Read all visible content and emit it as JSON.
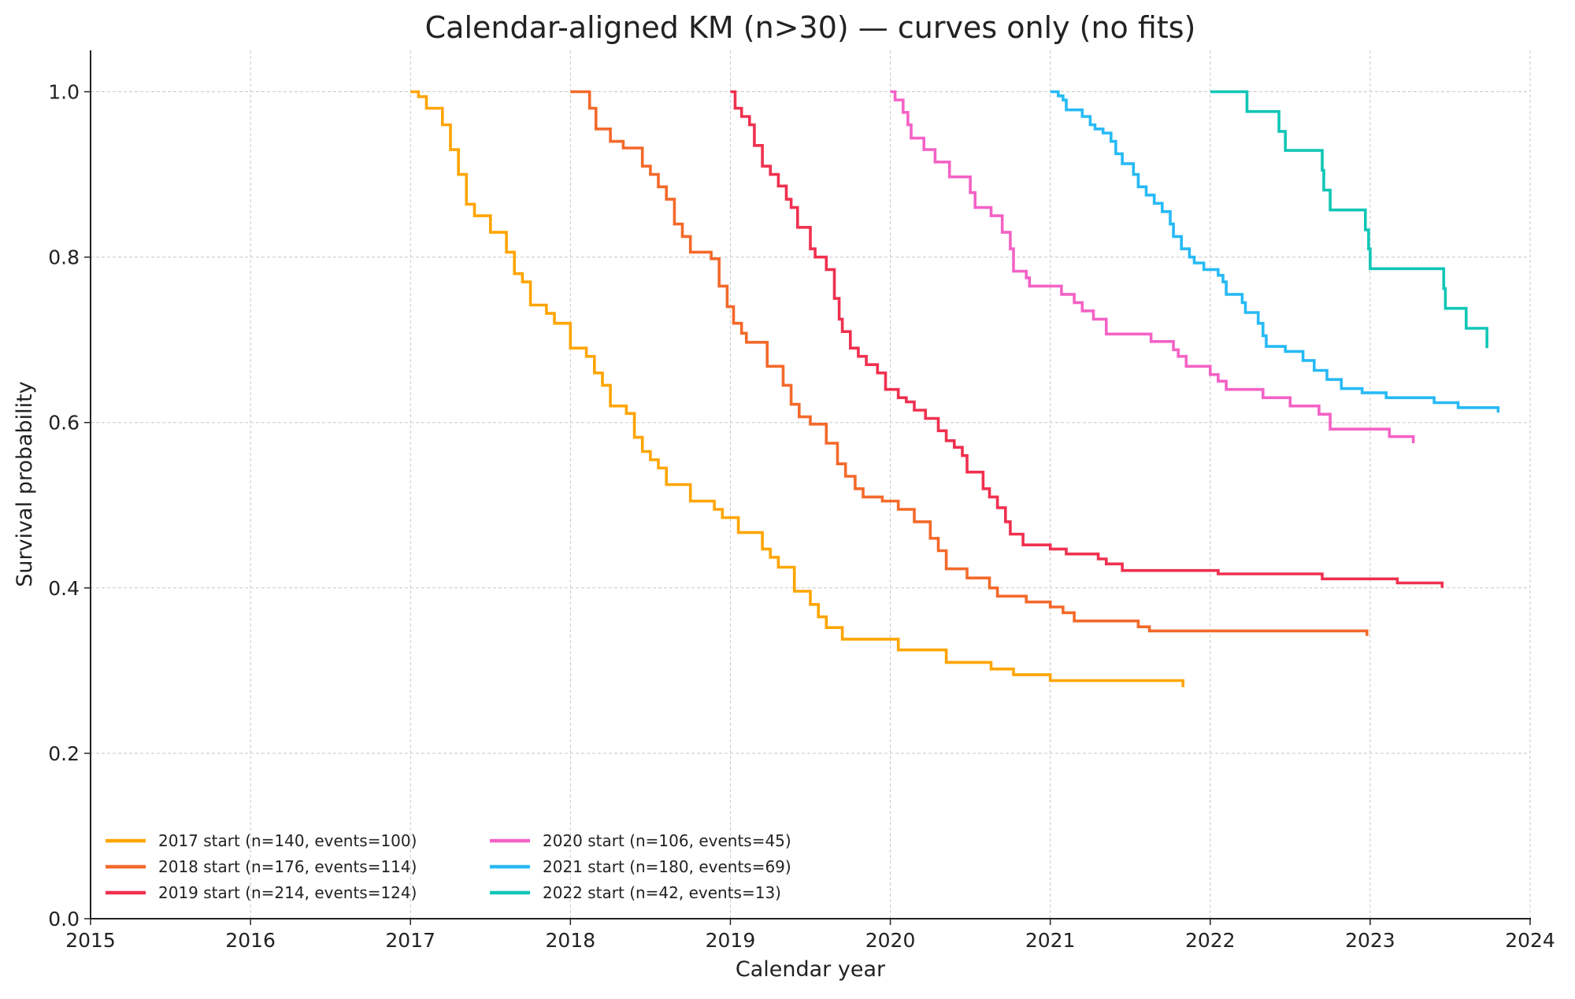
{
  "chart_data": {
    "type": "line",
    "step": true,
    "title": "Calendar-aligned KM (n>30) — curves only (no fits)",
    "xlabel": "Calendar year",
    "ylabel": "Survival probability",
    "xlim": [
      2015,
      2024
    ],
    "ylim": [
      0,
      1.05
    ],
    "xticks": [
      "2015",
      "2016",
      "2017",
      "2018",
      "2019",
      "2020",
      "2021",
      "2022",
      "2023",
      "2024"
    ],
    "yticks": [
      "0.0",
      "0.2",
      "0.4",
      "0.6",
      "0.8",
      "1.0"
    ],
    "grid": true,
    "legend_placement": "lower-left",
    "series": [
      {
        "name": "2017 start (n=140, events=100)",
        "color": "#FFA500",
        "points": [
          [
            2017.0,
            1.0
          ],
          [
            2017.05,
            0.994
          ],
          [
            2017.1,
            0.98
          ],
          [
            2017.2,
            0.96
          ],
          [
            2017.25,
            0.93
          ],
          [
            2017.3,
            0.9
          ],
          [
            2017.35,
            0.864
          ],
          [
            2017.4,
            0.85
          ],
          [
            2017.5,
            0.83
          ],
          [
            2017.6,
            0.806
          ],
          [
            2017.65,
            0.78
          ],
          [
            2017.7,
            0.77
          ],
          [
            2017.75,
            0.742
          ],
          [
            2017.85,
            0.732
          ],
          [
            2017.9,
            0.72
          ],
          [
            2018.0,
            0.69
          ],
          [
            2018.1,
            0.68
          ],
          [
            2018.15,
            0.66
          ],
          [
            2018.2,
            0.645
          ],
          [
            2018.25,
            0.62
          ],
          [
            2018.35,
            0.611
          ],
          [
            2018.4,
            0.582
          ],
          [
            2018.45,
            0.565
          ],
          [
            2018.5,
            0.555
          ],
          [
            2018.55,
            0.545
          ],
          [
            2018.6,
            0.525
          ],
          [
            2018.75,
            0.505
          ],
          [
            2018.9,
            0.495
          ],
          [
            2018.95,
            0.485
          ],
          [
            2019.05,
            0.467
          ],
          [
            2019.2,
            0.447
          ],
          [
            2019.25,
            0.437
          ],
          [
            2019.3,
            0.425
          ],
          [
            2019.4,
            0.396
          ],
          [
            2019.5,
            0.38
          ],
          [
            2019.55,
            0.365
          ],
          [
            2019.6,
            0.352
          ],
          [
            2019.7,
            0.338
          ],
          [
            2020.05,
            0.325
          ],
          [
            2020.35,
            0.31
          ],
          [
            2020.63,
            0.302
          ],
          [
            2020.77,
            0.295
          ],
          [
            2021.0,
            0.288
          ],
          [
            2021.83,
            0.288
          ],
          [
            2021.83,
            0.28
          ]
        ]
      },
      {
        "name": "2018 start (n=176, events=114)",
        "color": "#F4692A",
        "points": [
          [
            2018.0,
            1.0
          ],
          [
            2018.12,
            0.98
          ],
          [
            2018.16,
            0.955
          ],
          [
            2018.25,
            0.94
          ],
          [
            2018.33,
            0.932
          ],
          [
            2018.45,
            0.91
          ],
          [
            2018.5,
            0.9
          ],
          [
            2018.55,
            0.885
          ],
          [
            2018.6,
            0.87
          ],
          [
            2018.65,
            0.84
          ],
          [
            2018.7,
            0.825
          ],
          [
            2018.75,
            0.806
          ],
          [
            2018.88,
            0.798
          ],
          [
            2018.93,
            0.765
          ],
          [
            2018.98,
            0.74
          ],
          [
            2019.02,
            0.72
          ],
          [
            2019.07,
            0.708
          ],
          [
            2019.1,
            0.697
          ],
          [
            2019.23,
            0.668
          ],
          [
            2019.33,
            0.645
          ],
          [
            2019.38,
            0.622
          ],
          [
            2019.43,
            0.607
          ],
          [
            2019.5,
            0.598
          ],
          [
            2019.6,
            0.575
          ],
          [
            2019.67,
            0.55
          ],
          [
            2019.72,
            0.535
          ],
          [
            2019.78,
            0.52
          ],
          [
            2019.83,
            0.51
          ],
          [
            2019.95,
            0.505
          ],
          [
            2020.05,
            0.495
          ],
          [
            2020.15,
            0.48
          ],
          [
            2020.25,
            0.46
          ],
          [
            2020.3,
            0.445
          ],
          [
            2020.35,
            0.423
          ],
          [
            2020.48,
            0.412
          ],
          [
            2020.62,
            0.4
          ],
          [
            2020.67,
            0.39
          ],
          [
            2020.85,
            0.383
          ],
          [
            2021.0,
            0.377
          ],
          [
            2021.08,
            0.37
          ],
          [
            2021.15,
            0.36
          ],
          [
            2021.55,
            0.353
          ],
          [
            2021.62,
            0.348
          ],
          [
            2022.98,
            0.348
          ],
          [
            2022.98,
            0.342
          ]
        ]
      },
      {
        "name": "2019 start (n=214, events=124)",
        "color": "#F0304F",
        "points": [
          [
            2019.0,
            1.0
          ],
          [
            2019.03,
            0.98
          ],
          [
            2019.07,
            0.97
          ],
          [
            2019.12,
            0.96
          ],
          [
            2019.15,
            0.935
          ],
          [
            2019.2,
            0.91
          ],
          [
            2019.25,
            0.9
          ],
          [
            2019.3,
            0.886
          ],
          [
            2019.35,
            0.87
          ],
          [
            2019.38,
            0.86
          ],
          [
            2019.42,
            0.836
          ],
          [
            2019.5,
            0.81
          ],
          [
            2019.53,
            0.8
          ],
          [
            2019.6,
            0.785
          ],
          [
            2019.65,
            0.75
          ],
          [
            2019.68,
            0.725
          ],
          [
            2019.7,
            0.71
          ],
          [
            2019.75,
            0.69
          ],
          [
            2019.8,
            0.68
          ],
          [
            2019.85,
            0.67
          ],
          [
            2019.92,
            0.66
          ],
          [
            2019.97,
            0.64
          ],
          [
            2020.05,
            0.63
          ],
          [
            2020.1,
            0.625
          ],
          [
            2020.15,
            0.615
          ],
          [
            2020.22,
            0.605
          ],
          [
            2020.3,
            0.59
          ],
          [
            2020.35,
            0.578
          ],
          [
            2020.4,
            0.57
          ],
          [
            2020.45,
            0.56
          ],
          [
            2020.48,
            0.54
          ],
          [
            2020.58,
            0.52
          ],
          [
            2020.62,
            0.51
          ],
          [
            2020.67,
            0.497
          ],
          [
            2020.72,
            0.48
          ],
          [
            2020.75,
            0.465
          ],
          [
            2020.83,
            0.452
          ],
          [
            2021.0,
            0.447
          ],
          [
            2021.1,
            0.441
          ],
          [
            2021.3,
            0.435
          ],
          [
            2021.35,
            0.429
          ],
          [
            2021.45,
            0.421
          ],
          [
            2022.05,
            0.417
          ],
          [
            2022.7,
            0.411
          ],
          [
            2023.17,
            0.406
          ],
          [
            2023.45,
            0.406
          ],
          [
            2023.45,
            0.4
          ]
        ]
      },
      {
        "name": "2020 start (n=106, events=45)",
        "color": "#F462C6",
        "points": [
          [
            2020.0,
            1.0
          ],
          [
            2020.03,
            0.99
          ],
          [
            2020.08,
            0.975
          ],
          [
            2020.11,
            0.96
          ],
          [
            2020.13,
            0.944
          ],
          [
            2020.21,
            0.93
          ],
          [
            2020.28,
            0.915
          ],
          [
            2020.37,
            0.897
          ],
          [
            2020.5,
            0.878
          ],
          [
            2020.53,
            0.86
          ],
          [
            2020.63,
            0.85
          ],
          [
            2020.7,
            0.83
          ],
          [
            2020.75,
            0.81
          ],
          [
            2020.77,
            0.783
          ],
          [
            2020.85,
            0.775
          ],
          [
            2020.87,
            0.765
          ],
          [
            2021.07,
            0.755
          ],
          [
            2021.15,
            0.745
          ],
          [
            2021.2,
            0.735
          ],
          [
            2021.27,
            0.725
          ],
          [
            2021.35,
            0.707
          ],
          [
            2021.63,
            0.698
          ],
          [
            2021.77,
            0.688
          ],
          [
            2021.8,
            0.68
          ],
          [
            2021.85,
            0.668
          ],
          [
            2022.0,
            0.658
          ],
          [
            2022.05,
            0.65
          ],
          [
            2022.1,
            0.64
          ],
          [
            2022.33,
            0.63
          ],
          [
            2022.5,
            0.62
          ],
          [
            2022.68,
            0.61
          ],
          [
            2022.75,
            0.592
          ],
          [
            2023.12,
            0.583
          ],
          [
            2023.27,
            0.583
          ],
          [
            2023.27,
            0.575
          ]
        ]
      },
      {
        "name": "2021 start (n=180, events=69)",
        "color": "#27BAF5",
        "points": [
          [
            2021.0,
            1.0
          ],
          [
            2021.05,
            0.995
          ],
          [
            2021.08,
            0.99
          ],
          [
            2021.1,
            0.978
          ],
          [
            2021.2,
            0.97
          ],
          [
            2021.25,
            0.96
          ],
          [
            2021.28,
            0.955
          ],
          [
            2021.33,
            0.95
          ],
          [
            2021.38,
            0.94
          ],
          [
            2021.41,
            0.925
          ],
          [
            2021.45,
            0.913
          ],
          [
            2021.52,
            0.9
          ],
          [
            2021.55,
            0.885
          ],
          [
            2021.6,
            0.875
          ],
          [
            2021.65,
            0.865
          ],
          [
            2021.7,
            0.855
          ],
          [
            2021.75,
            0.84
          ],
          [
            2021.77,
            0.825
          ],
          [
            2021.82,
            0.81
          ],
          [
            2021.87,
            0.8
          ],
          [
            2021.9,
            0.793
          ],
          [
            2021.96,
            0.785
          ],
          [
            2022.05,
            0.778
          ],
          [
            2022.08,
            0.77
          ],
          [
            2022.1,
            0.755
          ],
          [
            2022.2,
            0.745
          ],
          [
            2022.22,
            0.733
          ],
          [
            2022.3,
            0.72
          ],
          [
            2022.33,
            0.705
          ],
          [
            2022.35,
            0.692
          ],
          [
            2022.47,
            0.686
          ],
          [
            2022.58,
            0.675
          ],
          [
            2022.65,
            0.663
          ],
          [
            2022.73,
            0.652
          ],
          [
            2022.82,
            0.641
          ],
          [
            2022.95,
            0.636
          ],
          [
            2023.1,
            0.63
          ],
          [
            2023.4,
            0.624
          ],
          [
            2023.55,
            0.618
          ],
          [
            2023.8,
            0.618
          ],
          [
            2023.8,
            0.612
          ]
        ]
      },
      {
        "name": "2022 start (n=42, events=13)",
        "color": "#10C6B6",
        "points": [
          [
            2022.0,
            1.0
          ],
          [
            2022.23,
            0.976
          ],
          [
            2022.43,
            0.952
          ],
          [
            2022.47,
            0.929
          ],
          [
            2022.7,
            0.905
          ],
          [
            2022.71,
            0.881
          ],
          [
            2022.75,
            0.857
          ],
          [
            2022.97,
            0.833
          ],
          [
            2022.99,
            0.81
          ],
          [
            2023.0,
            0.786
          ],
          [
            2023.46,
            0.762
          ],
          [
            2023.47,
            0.738
          ],
          [
            2023.6,
            0.714
          ],
          [
            2023.73,
            0.714
          ],
          [
            2023.73,
            0.69
          ]
        ]
      }
    ]
  }
}
